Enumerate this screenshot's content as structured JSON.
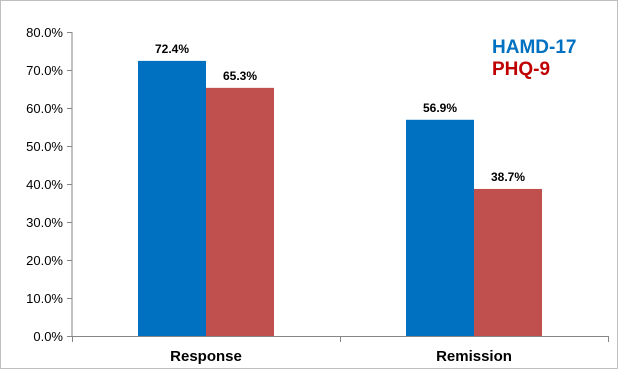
{
  "chart_data": {
    "type": "bar",
    "categories": [
      "Response",
      "Remission"
    ],
    "series": [
      {
        "name": "HAMD-17",
        "color": "#0070c0",
        "values": [
          72.4,
          56.9
        ],
        "labels": [
          "72.4%",
          "56.9%"
        ]
      },
      {
        "name": "PHQ-9",
        "color": "#c0504d",
        "values": [
          65.3,
          38.7
        ],
        "labels": [
          "65.3%",
          "38.7%"
        ]
      }
    ],
    "yticks": [
      0,
      10,
      20,
      30,
      40,
      50,
      60,
      70,
      80
    ],
    "ytick_labels": [
      "0.0%",
      "10.0%",
      "20.0%",
      "30.0%",
      "40.0%",
      "50.0%",
      "60.0%",
      "70.0%",
      "80.0%"
    ],
    "ylim": [
      0,
      80
    ],
    "grid": false,
    "legend_position": "top-right",
    "legend_text_colors": [
      "#0070c0",
      "#c00000"
    ]
  }
}
